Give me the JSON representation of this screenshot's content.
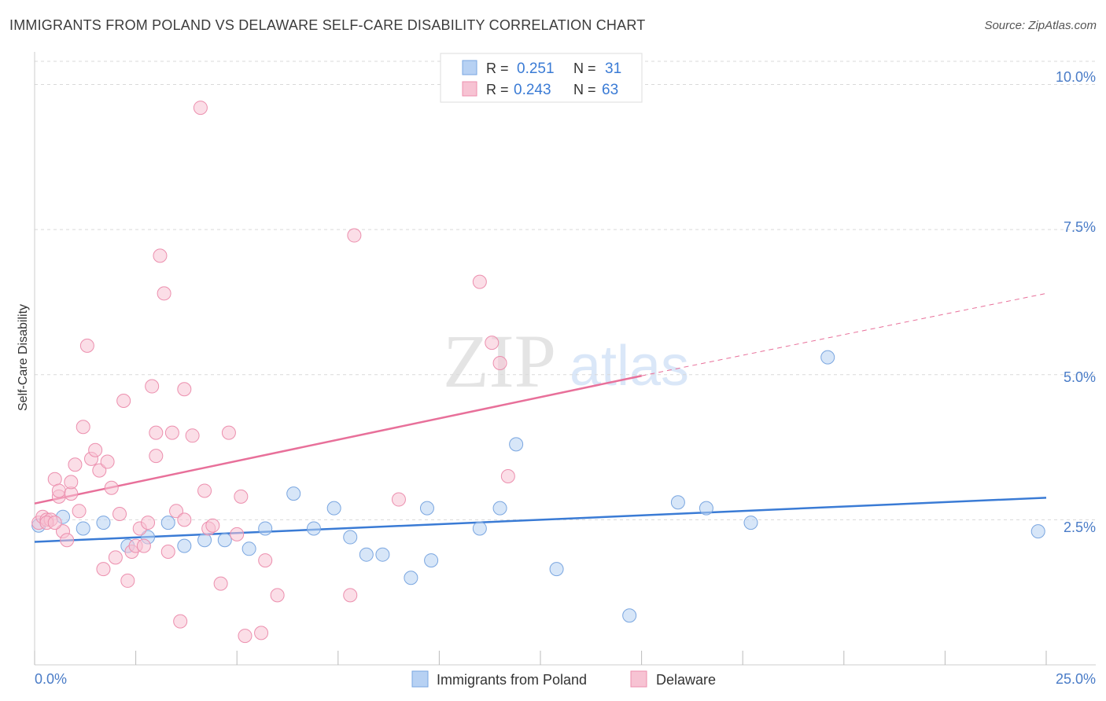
{
  "title": "IMMIGRANTS FROM POLAND VS DELAWARE SELF-CARE DISABILITY CORRELATION CHART",
  "source": "Source: ZipAtlas.com",
  "watermark": {
    "zip": "ZIP",
    "atlas": "atlas"
  },
  "colors": {
    "blue_fill": "#b7d1f3",
    "blue_stroke": "#7aa6e0",
    "blue_line": "#3a7bd5",
    "pink_fill": "#f7c3d3",
    "pink_stroke": "#ec8fae",
    "pink_line": "#e8709a",
    "axis_text": "#4a7cc7",
    "grid": "#d9d9d9"
  },
  "legend_top": [
    {
      "r_label": "R =",
      "r_value": "0.251",
      "n_label": "N =",
      "n_value": "31",
      "color": "blue"
    },
    {
      "r_label": "R =",
      "r_value": "0.243",
      "n_label": "N =",
      "n_value": "63",
      "color": "pink"
    }
  ],
  "chart_data": {
    "type": "scatter",
    "title": "IMMIGRANTS FROM POLAND VS DELAWARE SELF-CARE DISABILITY CORRELATION CHART",
    "xlabel": "",
    "ylabel": "Self-Care Disability",
    "xlim": [
      0,
      25
    ],
    "ylim": [
      0,
      10.4
    ],
    "x_tick_labels": [
      "0.0%",
      "25.0%"
    ],
    "y_ticks": [
      2.5,
      5.0,
      7.5,
      10.0
    ],
    "y_tick_labels": [
      "2.5%",
      "5.0%",
      "7.5%",
      "10.0%"
    ],
    "grid": true,
    "legend_position": "bottom-center",
    "series": [
      {
        "name": "Immigrants from Poland",
        "color": "blue",
        "trend": {
          "x": [
            0,
            25
          ],
          "y": [
            2.12,
            2.88
          ],
          "dashed_extension": false
        },
        "points": [
          [
            0.1,
            2.4
          ],
          [
            0.7,
            2.55
          ],
          [
            1.2,
            2.35
          ],
          [
            1.7,
            2.45
          ],
          [
            2.3,
            2.05
          ],
          [
            2.8,
            2.2
          ],
          [
            3.3,
            2.45
          ],
          [
            3.7,
            2.05
          ],
          [
            4.2,
            2.15
          ],
          [
            4.7,
            2.15
          ],
          [
            5.3,
            2.0
          ],
          [
            5.7,
            2.35
          ],
          [
            6.4,
            2.95
          ],
          [
            6.9,
            2.35
          ],
          [
            7.4,
            2.7
          ],
          [
            7.8,
            2.2
          ],
          [
            8.2,
            1.9
          ],
          [
            8.6,
            1.9
          ],
          [
            9.3,
            1.5
          ],
          [
            9.7,
            2.7
          ],
          [
            9.8,
            1.8
          ],
          [
            11.0,
            2.35
          ],
          [
            11.5,
            2.7
          ],
          [
            11.9,
            3.8
          ],
          [
            12.9,
            1.65
          ],
          [
            14.7,
            0.85
          ],
          [
            15.9,
            2.8
          ],
          [
            16.6,
            2.7
          ],
          [
            17.7,
            2.45
          ],
          [
            19.6,
            5.3
          ],
          [
            24.8,
            2.3
          ]
        ]
      },
      {
        "name": "Delaware",
        "color": "pink",
        "trend": {
          "x": [
            0,
            15
          ],
          "y": [
            2.78,
            4.98
          ],
          "dashed_to": [
            25,
            6.4
          ]
        },
        "points": [
          [
            0.1,
            2.45
          ],
          [
            0.2,
            2.55
          ],
          [
            0.3,
            2.5
          ],
          [
            0.4,
            2.5
          ],
          [
            0.5,
            3.2
          ],
          [
            0.6,
            2.9
          ],
          [
            0.6,
            3.0
          ],
          [
            0.7,
            2.3
          ],
          [
            0.8,
            2.15
          ],
          [
            0.9,
            2.95
          ],
          [
            0.9,
            3.15
          ],
          [
            1.0,
            3.45
          ],
          [
            1.1,
            2.65
          ],
          [
            1.2,
            4.1
          ],
          [
            1.3,
            5.5
          ],
          [
            1.4,
            3.55
          ],
          [
            1.5,
            3.7
          ],
          [
            1.6,
            3.35
          ],
          [
            1.7,
            1.65
          ],
          [
            1.8,
            3.5
          ],
          [
            1.9,
            3.05
          ],
          [
            2.0,
            1.85
          ],
          [
            2.1,
            2.6
          ],
          [
            2.2,
            4.55
          ],
          [
            2.3,
            1.45
          ],
          [
            2.4,
            1.95
          ],
          [
            2.5,
            2.05
          ],
          [
            2.6,
            2.35
          ],
          [
            2.7,
            2.05
          ],
          [
            2.8,
            2.45
          ],
          [
            2.9,
            4.8
          ],
          [
            3.0,
            3.6
          ],
          [
            3.0,
            4.0
          ],
          [
            3.1,
            7.05
          ],
          [
            3.2,
            6.4
          ],
          [
            3.3,
            1.95
          ],
          [
            3.4,
            4.0
          ],
          [
            3.5,
            2.65
          ],
          [
            3.6,
            0.75
          ],
          [
            3.7,
            2.5
          ],
          [
            3.7,
            4.75
          ],
          [
            3.9,
            3.95
          ],
          [
            4.1,
            9.6
          ],
          [
            4.2,
            3.0
          ],
          [
            4.3,
            2.35
          ],
          [
            4.4,
            2.4
          ],
          [
            4.6,
            1.4
          ],
          [
            4.8,
            4.0
          ],
          [
            5.0,
            2.25
          ],
          [
            5.1,
            2.9
          ],
          [
            5.2,
            0.5
          ],
          [
            5.6,
            0.55
          ],
          [
            5.7,
            1.8
          ],
          [
            6.0,
            1.2
          ],
          [
            7.8,
            1.2
          ],
          [
            7.9,
            7.4
          ],
          [
            9.0,
            2.85
          ],
          [
            11.0,
            6.6
          ],
          [
            11.3,
            5.55
          ],
          [
            11.5,
            5.2
          ],
          [
            11.7,
            3.25
          ],
          [
            0.3,
            2.45
          ],
          [
            0.5,
            2.45
          ]
        ]
      }
    ]
  }
}
